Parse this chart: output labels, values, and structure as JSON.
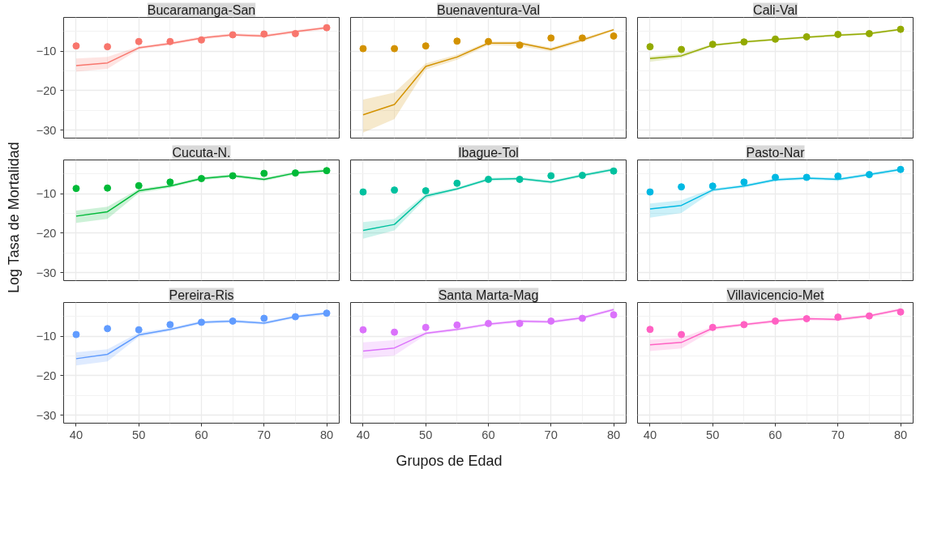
{
  "chart_data": [
    {
      "type": "line",
      "title": "Bucaramanga-San",
      "x": [
        40,
        45,
        50,
        55,
        60,
        65,
        70,
        75,
        80
      ],
      "xlim": [
        38,
        82
      ],
      "ylim": [
        -32,
        -1.5
      ],
      "xticks": [
        40,
        50,
        60,
        70,
        80
      ],
      "yticks": [
        -30,
        -20,
        -10
      ],
      "grid": true,
      "tick_labels": "y",
      "series": [
        {
          "type": "scatter",
          "marker": "circle",
          "color": "#f8766d",
          "values": [
            -8.7,
            -8.9,
            -7.6,
            -7.6,
            -7.2,
            -5.9,
            -5.7,
            -5.6,
            -4.1
          ]
        },
        {
          "marker": "none",
          "color": "#f8766d",
          "values": [
            -13.7,
            -13.0,
            -9.2,
            -8.1,
            -6.7,
            -5.9,
            -6.2,
            -5.1,
            -4.1
          ],
          "lower": [
            -15.2,
            -14.5,
            -9.6,
            -8.5,
            -7.1,
            -6.3,
            -6.6,
            -5.5,
            -4.5
          ],
          "upper": [
            -11.9,
            -11.5,
            -8.8,
            -7.7,
            -6.3,
            -5.5,
            -5.8,
            -4.7,
            -3.7
          ]
        }
      ]
    },
    {
      "type": "line",
      "title": "Buenaventura-Val",
      "x": [
        40,
        45,
        50,
        55,
        60,
        65,
        70,
        75,
        80
      ],
      "xlim": [
        38,
        82
      ],
      "ylim": [
        -32,
        -1.5
      ],
      "xticks": [
        40,
        50,
        60,
        70,
        80
      ],
      "yticks": [
        -30,
        -20,
        -10
      ],
      "grid": true,
      "tick_labels": false,
      "series": [
        {
          "type": "scatter",
          "marker": "circle",
          "color": "#d39200",
          "values": [
            -9.4,
            -9.4,
            -8.7,
            -7.5,
            -7.6,
            -8.5,
            -6.7,
            -6.7,
            -6.2
          ]
        },
        {
          "marker": "none",
          "color": "#d39200",
          "values": [
            -26.1,
            -23.5,
            -13.9,
            -11.5,
            -8.0,
            -8.0,
            -9.6,
            -7.2,
            -4.6
          ],
          "lower": [
            -30.6,
            -27.2,
            -14.7,
            -12.2,
            -8.5,
            -8.7,
            -10.1,
            -7.7,
            -4.9
          ],
          "upper": [
            -22.3,
            -20.5,
            -13.1,
            -10.9,
            -7.6,
            -7.6,
            -9.1,
            -6.7,
            -4.3
          ]
        }
      ]
    },
    {
      "type": "line",
      "title": "Cali-Val",
      "x": [
        40,
        45,
        50,
        55,
        60,
        65,
        70,
        75,
        80
      ],
      "xlim": [
        38,
        82
      ],
      "ylim": [
        -32,
        -1.5
      ],
      "xticks": [
        40,
        50,
        60,
        70,
        80
      ],
      "yticks": [
        -30,
        -20,
        -10
      ],
      "grid": true,
      "tick_labels": false,
      "series": [
        {
          "type": "scatter",
          "marker": "circle",
          "color": "#93aa00",
          "values": [
            -8.9,
            -9.6,
            -8.3,
            -7.7,
            -7.0,
            -6.4,
            -5.8,
            -5.6,
            -4.5
          ]
        },
        {
          "marker": "none",
          "color": "#93aa00",
          "values": [
            -11.9,
            -11.2,
            -8.5,
            -7.7,
            -7.1,
            -6.5,
            -6.0,
            -5.6,
            -4.5
          ],
          "lower": [
            -12.7,
            -11.7,
            -8.8,
            -8.0,
            -7.4,
            -6.8,
            -6.3,
            -5.9,
            -4.8
          ],
          "upper": [
            -11.3,
            -10.6,
            -8.2,
            -7.4,
            -6.8,
            -6.2,
            -5.7,
            -5.3,
            -4.2
          ]
        }
      ]
    },
    {
      "type": "line",
      "title": "Cucuta-N.",
      "ylabel": "Log Tasa de Mortalidad",
      "x": [
        40,
        45,
        50,
        55,
        60,
        65,
        70,
        75,
        80
      ],
      "xlim": [
        38,
        82
      ],
      "ylim": [
        -32,
        -1.5
      ],
      "xticks": [
        40,
        50,
        60,
        70,
        80
      ],
      "yticks": [
        -30,
        -20,
        -10
      ],
      "grid": true,
      "tick_labels": "y",
      "series": [
        {
          "type": "scatter",
          "marker": "circle",
          "color": "#00ba38",
          "values": [
            -8.7,
            -8.6,
            -8.0,
            -7.1,
            -6.2,
            -5.5,
            -4.9,
            -4.8,
            -4.2
          ]
        },
        {
          "marker": "none",
          "color": "#00ba38",
          "values": [
            -15.7,
            -14.6,
            -9.3,
            -8.1,
            -6.2,
            -5.5,
            -6.4,
            -4.8,
            -4.2
          ],
          "lower": [
            -17.4,
            -16.4,
            -9.9,
            -8.5,
            -6.6,
            -5.9,
            -6.8,
            -5.2,
            -4.6
          ],
          "upper": [
            -14.3,
            -13.3,
            -8.8,
            -7.7,
            -5.8,
            -5.1,
            -6.0,
            -4.4,
            -3.8
          ]
        }
      ]
    },
    {
      "type": "line",
      "title": "Ibague-Tol",
      "x": [
        40,
        45,
        50,
        55,
        60,
        65,
        70,
        75,
        80
      ],
      "xlim": [
        38,
        82
      ],
      "ylim": [
        -32,
        -1.5
      ],
      "xticks": [
        40,
        50,
        60,
        70,
        80
      ],
      "yticks": [
        -30,
        -20,
        -10
      ],
      "grid": true,
      "tick_labels": false,
      "series": [
        {
          "type": "scatter",
          "marker": "circle",
          "color": "#00c19f",
          "values": [
            -9.6,
            -9.1,
            -9.3,
            -7.4,
            -6.4,
            -6.4,
            -5.5,
            -5.4,
            -4.3
          ]
        },
        {
          "marker": "none",
          "color": "#00c19f",
          "values": [
            -19.3,
            -17.8,
            -10.6,
            -8.8,
            -6.4,
            -6.2,
            -7.1,
            -5.4,
            -3.9
          ],
          "lower": [
            -21.4,
            -19.3,
            -11.2,
            -9.2,
            -6.8,
            -6.6,
            -7.5,
            -5.8,
            -4.3
          ],
          "upper": [
            -17.2,
            -16.4,
            -10.1,
            -8.4,
            -6.0,
            -5.8,
            -6.7,
            -5.0,
            -3.5
          ]
        }
      ]
    },
    {
      "type": "line",
      "title": "Pasto-Nar",
      "x": [
        40,
        45,
        50,
        55,
        60,
        65,
        70,
        75,
        80
      ],
      "xlim": [
        38,
        82
      ],
      "ylim": [
        -32,
        -1.5
      ],
      "xticks": [
        40,
        50,
        60,
        70,
        80
      ],
      "yticks": [
        -30,
        -20,
        -10
      ],
      "grid": true,
      "tick_labels": false,
      "series": [
        {
          "type": "scatter",
          "marker": "circle",
          "color": "#00b9e3",
          "values": [
            -9.6,
            -8.3,
            -8.1,
            -7.1,
            -5.9,
            -5.9,
            -5.6,
            -5.2,
            -3.9
          ]
        },
        {
          "marker": "none",
          "color": "#00b9e3",
          "values": [
            -13.9,
            -13.0,
            -9.1,
            -8.1,
            -6.5,
            -6.1,
            -6.4,
            -5.2,
            -3.9
          ],
          "lower": [
            -16.1,
            -14.9,
            -9.5,
            -8.5,
            -6.9,
            -6.5,
            -6.8,
            -5.6,
            -4.3
          ],
          "upper": [
            -12.5,
            -11.7,
            -8.7,
            -7.7,
            -6.1,
            -5.7,
            -6.0,
            -4.8,
            -3.5
          ]
        }
      ]
    },
    {
      "type": "line",
      "title": "Pereira-Ris",
      "x": [
        40,
        45,
        50,
        55,
        60,
        65,
        70,
        75,
        80
      ],
      "xlim": [
        38,
        82
      ],
      "ylim": [
        -32,
        -1.5
      ],
      "xticks": [
        40,
        50,
        60,
        70,
        80
      ],
      "yticks": [
        -30,
        -20,
        -10
      ],
      "grid": true,
      "series": [
        {
          "type": "scatter",
          "marker": "circle",
          "color": "#619cff",
          "values": [
            -9.6,
            -8.1,
            -8.4,
            -7.1,
            -6.5,
            -6.2,
            -5.5,
            -5.1,
            -4.2
          ]
        },
        {
          "marker": "none",
          "color": "#619cff",
          "values": [
            -15.7,
            -14.6,
            -9.7,
            -8.3,
            -6.5,
            -6.2,
            -6.7,
            -5.1,
            -4.2
          ],
          "lower": [
            -17.4,
            -16.4,
            -10.2,
            -8.7,
            -6.9,
            -6.6,
            -7.1,
            -5.5,
            -4.6
          ],
          "upper": [
            -14.1,
            -13.3,
            -9.1,
            -7.9,
            -6.1,
            -5.8,
            -6.3,
            -4.7,
            -3.8
          ]
        }
      ]
    },
    {
      "type": "line",
      "title": "Santa Marta-Mag",
      "xlabel": "Grupos de Edad",
      "x": [
        40,
        45,
        50,
        55,
        60,
        65,
        70,
        75,
        80
      ],
      "xlim": [
        38,
        82
      ],
      "ylim": [
        -32,
        -1.5
      ],
      "xticks": [
        40,
        50,
        60,
        70,
        80
      ],
      "yticks": [
        -30,
        -20,
        -10
      ],
      "grid": true,
      "tick_labels": "x",
      "series": [
        {
          "type": "scatter",
          "marker": "circle",
          "color": "#db72fb",
          "values": [
            -8.4,
            -9.0,
            -7.8,
            -7.2,
            -6.8,
            -6.8,
            -6.2,
            -5.5,
            -4.6
          ]
        },
        {
          "marker": "none",
          "color": "#db72fb",
          "values": [
            -13.8,
            -13.0,
            -9.3,
            -8.3,
            -7.0,
            -6.2,
            -6.4,
            -5.4,
            -3.3
          ],
          "lower": [
            -15.7,
            -14.9,
            -9.7,
            -8.7,
            -7.4,
            -6.6,
            -6.8,
            -5.8,
            -3.7
          ],
          "upper": [
            -11.6,
            -11.0,
            -8.9,
            -7.9,
            -6.6,
            -5.8,
            -6.0,
            -5.0,
            -2.9
          ]
        }
      ]
    },
    {
      "type": "line",
      "title": "Villavicencio-Met",
      "x": [
        40,
        45,
        50,
        55,
        60,
        65,
        70,
        75,
        80
      ],
      "xlim": [
        38,
        82
      ],
      "ylim": [
        -32,
        -1.5
      ],
      "xticks": [
        40,
        50,
        60,
        70,
        80
      ],
      "yticks": [
        -30,
        -20,
        -10
      ],
      "grid": true,
      "tick_labels": "x",
      "series": [
        {
          "type": "scatter",
          "marker": "circle",
          "color": "#ff61c3",
          "values": [
            -8.3,
            -9.6,
            -7.8,
            -7.1,
            -6.2,
            -5.6,
            -5.2,
            -4.9,
            -3.9
          ]
        },
        {
          "marker": "none",
          "color": "#ff61c3",
          "values": [
            -12.2,
            -11.6,
            -8.0,
            -7.1,
            -6.2,
            -5.6,
            -5.8,
            -4.9,
            -3.3
          ],
          "lower": [
            -13.8,
            -13.1,
            -8.5,
            -7.5,
            -6.6,
            -6.0,
            -6.2,
            -5.3,
            -3.7
          ],
          "upper": [
            -10.9,
            -10.4,
            -7.6,
            -6.7,
            -5.8,
            -5.2,
            -5.4,
            -4.5,
            -2.9
          ]
        }
      ]
    }
  ]
}
